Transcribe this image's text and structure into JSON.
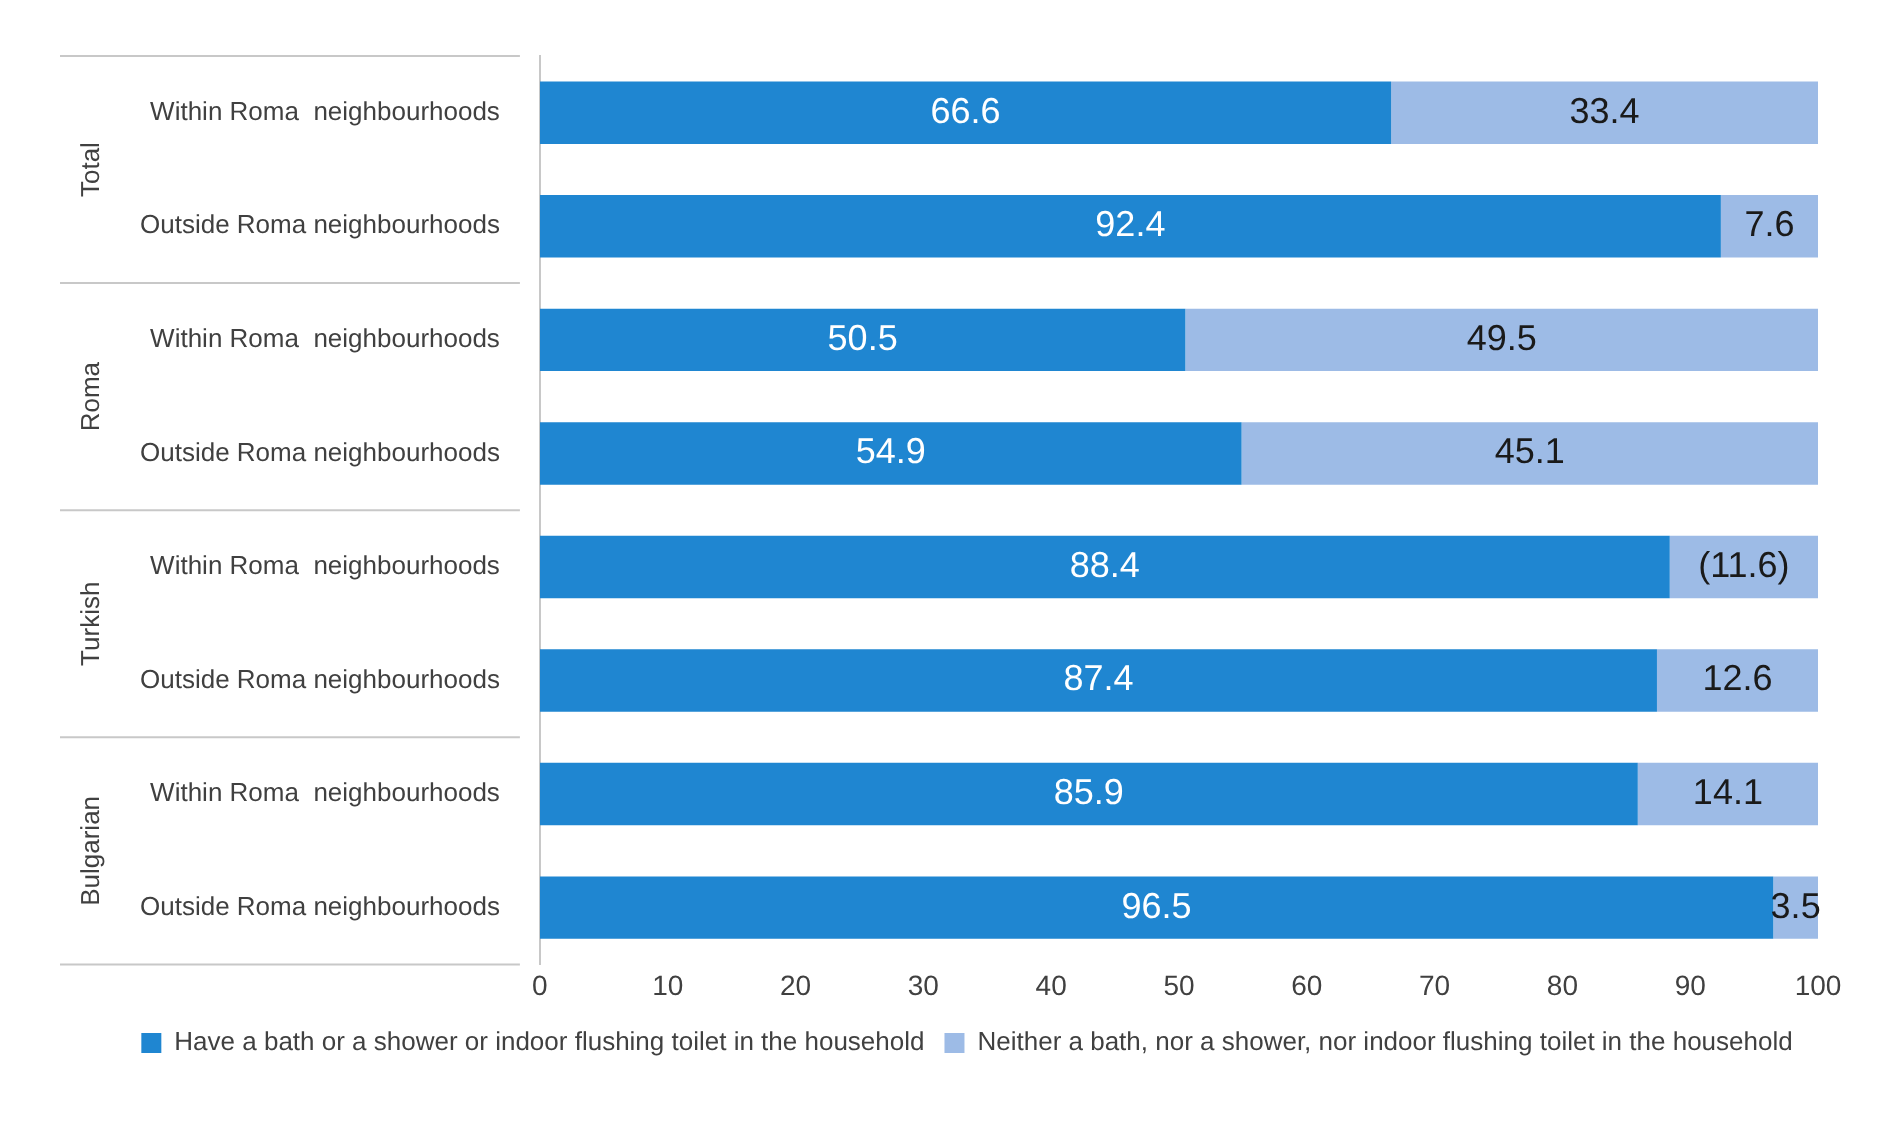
{
  "chart_data": {
    "type": "bar",
    "orientation": "horizontal",
    "stacked": true,
    "categories": [
      "Within Roma  neighbourhoods",
      "Outside Roma neighbourhoods",
      "Within Roma  neighbourhoods",
      "Outside Roma neighbourhoods",
      "Within Roma  neighbourhoods",
      "Outside Roma neighbourhoods",
      "Within Roma  neighbourhoods",
      "Outside Roma neighbourhoods"
    ],
    "series": [
      {
        "name": "Have a bath or a shower or indoor flushing toilet in the household",
        "color": "#1f86d1",
        "values": [
          66.6,
          92.4,
          50.5,
          54.9,
          88.4,
          87.4,
          85.9,
          96.5
        ],
        "value_labels": [
          "66.6",
          "92.4",
          "50.5",
          "54.9",
          "88.4",
          "87.4",
          "85.9",
          "96.5"
        ]
      },
      {
        "name": "Neither a bath, nor a shower, nor indoor flushing toilet in the household",
        "color": "#9dbbe6",
        "values": [
          33.4,
          7.6,
          49.5,
          45.1,
          11.6,
          12.6,
          14.1,
          3.5
        ],
        "value_labels": [
          "33.4",
          "7.6",
          "49.5",
          "45.1",
          "(11.6)",
          "12.6",
          "14.1",
          "3.5"
        ]
      }
    ],
    "annotations": [
      "Total",
      "Roma",
      "Turkish",
      "Bulgarian"
    ],
    "xlim": [
      0,
      100
    ],
    "xticks": [
      0,
      10,
      20,
      30,
      40,
      50,
      60,
      70,
      80,
      90,
      100
    ],
    "grid": false,
    "legend": "bottom"
  }
}
